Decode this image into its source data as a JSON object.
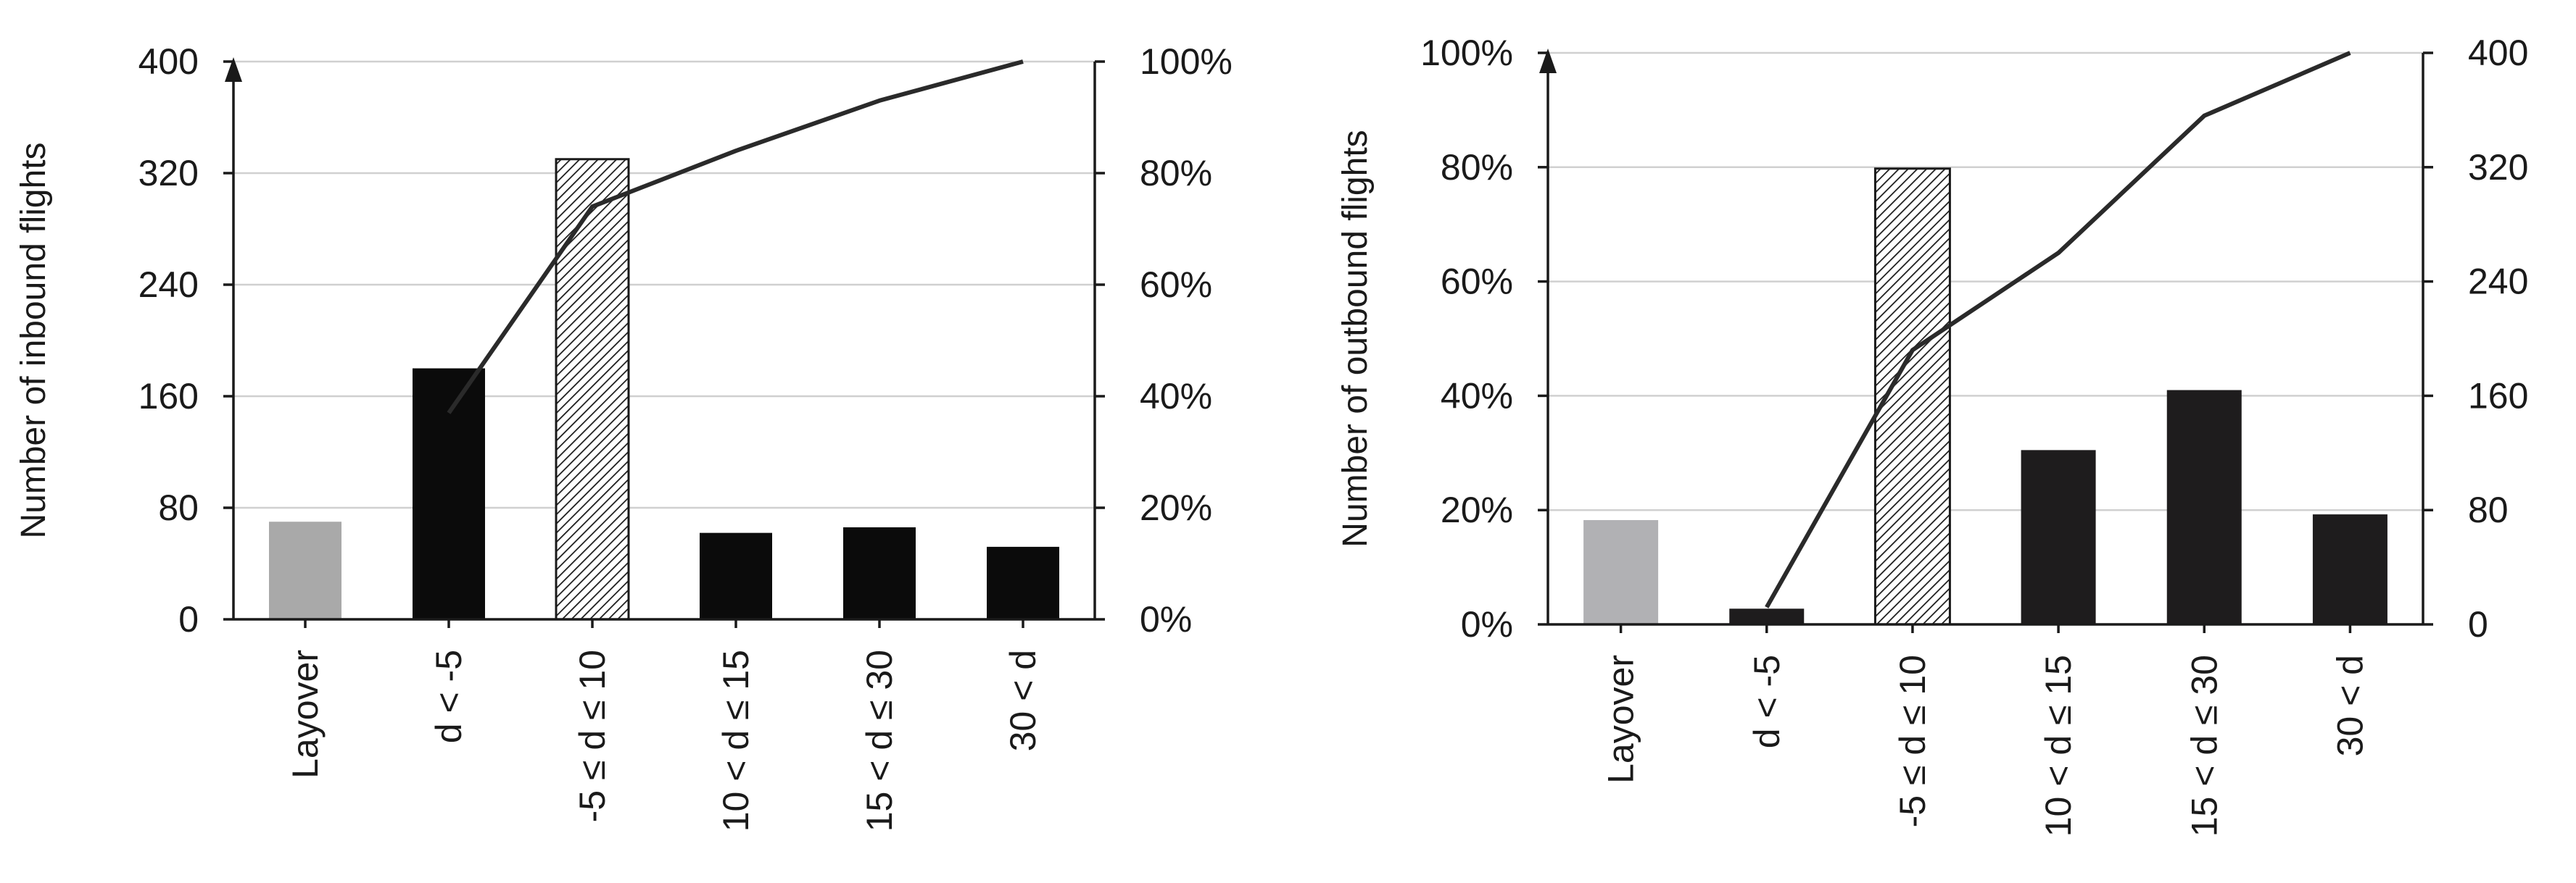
{
  "chart_data": [
    {
      "type": "bar",
      "categories": [
        "Layover",
        "d < -5",
        "-5 ≤ d ≤ 10",
        "10 < d ≤ 15",
        "15 < d ≤ 30",
        "30 < d"
      ],
      "series": [
        {
          "values": [
            70,
            180,
            330,
            62,
            66,
            52
          ],
          "colors": [
            "#a9a9a9",
            "#0b0b0b",
            "hatched",
            "#0b0b0b",
            "#0b0b0b",
            "#0b0b0b"
          ]
        },
        {
          "type": "line",
          "axis": "right",
          "x": [
            "d < -5",
            "-5 ≤ d ≤ 10",
            "10 < d ≤ 15",
            "15 < d ≤ 30",
            "30 < d"
          ],
          "values": [
            37,
            74,
            84,
            93,
            100
          ]
        }
      ],
      "ylabel": "Number of inbound flights",
      "ylim": [
        0,
        400
      ],
      "yticks": [
        "0",
        "80",
        "160",
        "240",
        "320",
        "400"
      ],
      "y2lim": [
        0,
        100
      ],
      "y2ticks": [
        "0%",
        "20%",
        "40%",
        "60%",
        "80%",
        "100%"
      ],
      "grid": true
    },
    {
      "type": "bar",
      "categories": [
        "Layover",
        "d < -5",
        "-5 ≤ d ≤ 10",
        "10 < d ≤ 15",
        "15 < d ≤ 30",
        "30 < d"
      ],
      "series": [
        {
          "values": [
            73,
            11,
            319,
            122,
            164,
            77
          ],
          "colors": [
            "#b1b1b4",
            "#1e1c1d",
            "hatched",
            "#1e1c1d",
            "#1e1c1d",
            "#1e1c1d"
          ]
        },
        {
          "type": "line",
          "axis": "left",
          "x": [
            "d < -5",
            "-5 ≤ d ≤ 10",
            "10 < d ≤ 15",
            "15 < d ≤ 30",
            "30 < d"
          ],
          "values": [
            3,
            48,
            65,
            89,
            100
          ]
        }
      ],
      "ylabel": "Number of outbound flights",
      "ylim": [
        0,
        100
      ],
      "yticks": [
        "0%",
        "20%",
        "40%",
        "60%",
        "80%",
        "100%"
      ],
      "y2lim": [
        0,
        400
      ],
      "y2ticks": [
        "0",
        "80",
        "160",
        "240",
        "320",
        "400"
      ],
      "grid": true
    }
  ]
}
